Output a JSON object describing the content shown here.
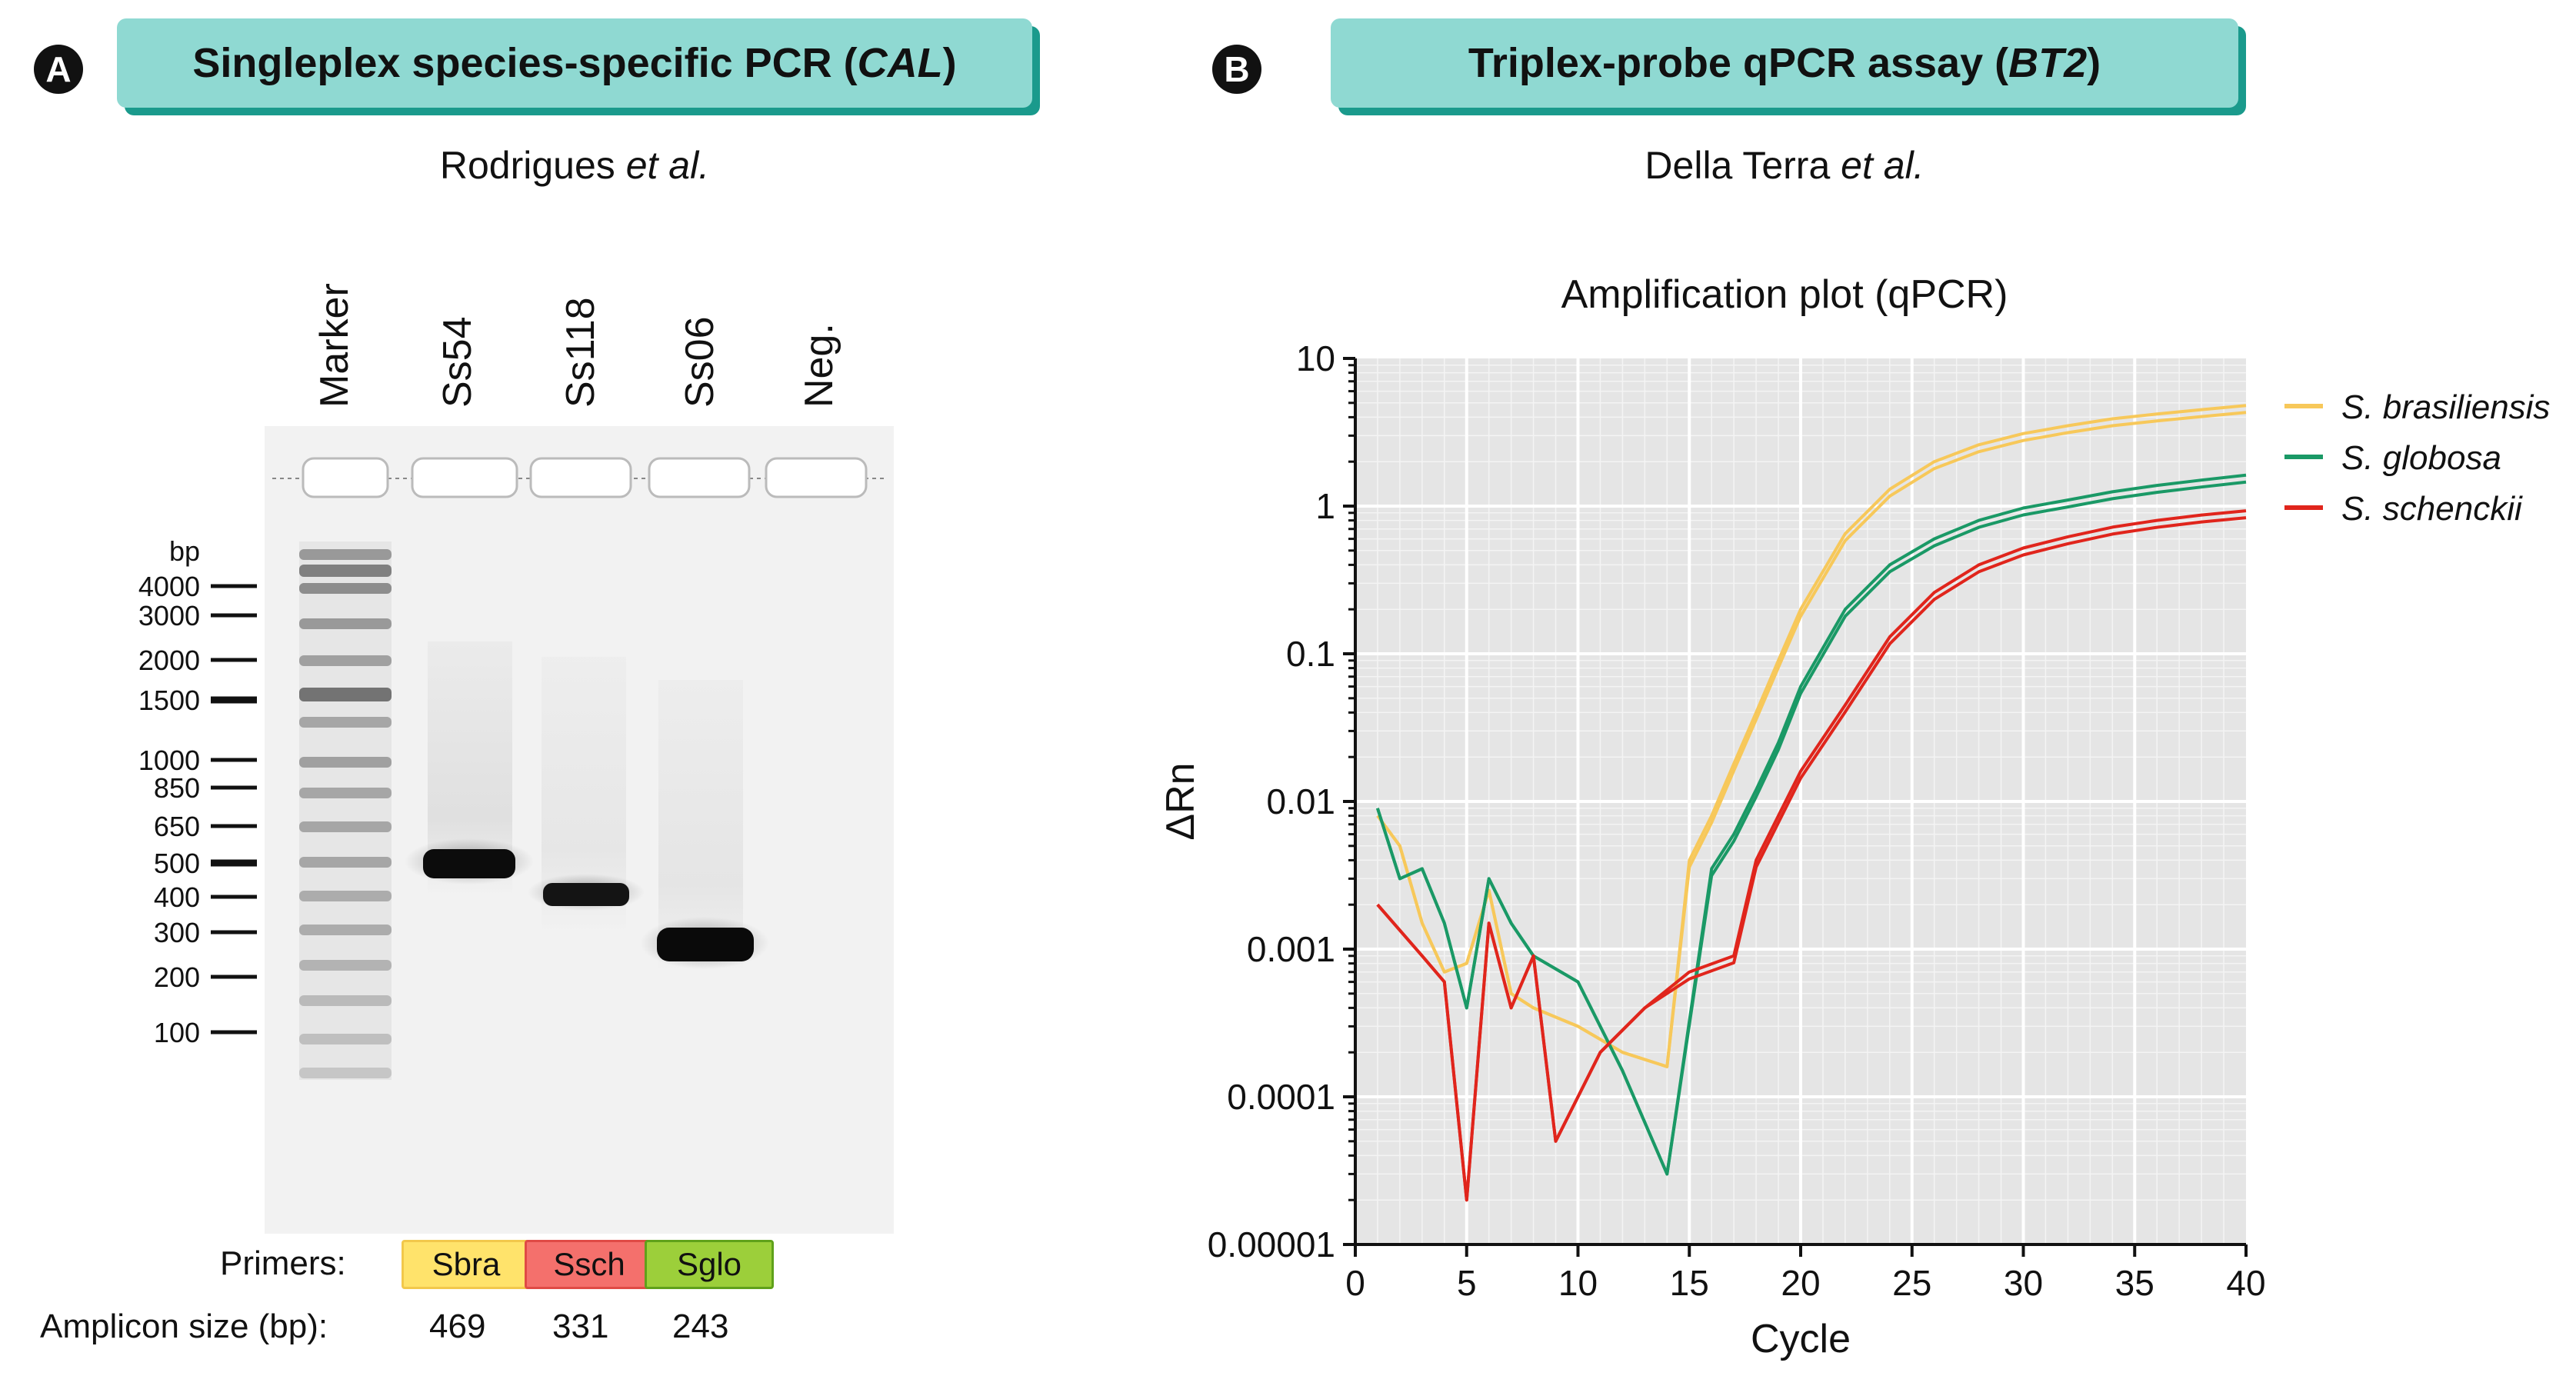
{
  "panel_a": {
    "badge": "A",
    "title_main": "Singleplex species-specific PCR (",
    "title_gene": "CAL",
    "title_end": ")",
    "author_name": "Rodrigues ",
    "author_etal": "et al.",
    "lanes": [
      "Marker",
      "Ss54",
      "Ss118",
      "Ss06",
      "Neg."
    ],
    "bp_unit": "bp",
    "ladder": [
      "4000",
      "3000",
      "2000",
      "1500",
      "1000",
      "850",
      "650",
      "500",
      "400",
      "300",
      "200",
      "100"
    ],
    "primers_label": "Primers:",
    "primers": [
      {
        "name": "Sbra",
        "color": "#ffe36b",
        "border": "#f2c84b"
      },
      {
        "name": "Ssch",
        "color": "#f4706c",
        "border": "#e04a45"
      },
      {
        "name": "Sglo",
        "color": "#9ccf3a",
        "border": "#5fa11a"
      }
    ],
    "amplicon_label": "Amplicon size (bp):",
    "amplicons": [
      "469",
      "331",
      "243"
    ]
  },
  "panel_b": {
    "badge": "B",
    "title_main": "Triplex-probe qPCR assay (",
    "title_gene": "BT2",
    "title_end": ")",
    "author_name": "Della Terra ",
    "author_etal": "et al."
  },
  "chart_data": {
    "type": "line",
    "title": "Amplification plot (qPCR)",
    "xlabel": "Cycle",
    "ylabel": "ΔRn",
    "x_ticks": [
      "0",
      "5",
      "10",
      "15",
      "20",
      "25",
      "30",
      "35",
      "40"
    ],
    "y_ticks": [
      "10",
      "1",
      "0.1",
      "0.01",
      "0.001",
      "0.0001",
      "0.00001"
    ],
    "xlim": [
      0,
      40
    ],
    "ylim": [
      1e-05,
      10
    ],
    "yscale": "log",
    "legend_position": "right",
    "series": [
      {
        "name": "S. brasiliensis",
        "color": "#f7c85a",
        "x": [
          1,
          2,
          3,
          4,
          5,
          6,
          7,
          8,
          10,
          12,
          14,
          15,
          16,
          17,
          18,
          19,
          20,
          22,
          24,
          26,
          28,
          30,
          32,
          34,
          36,
          38,
          40
        ],
        "y": [
          0.008,
          0.005,
          0.0015,
          0.0007,
          0.0008,
          0.0025,
          0.0005,
          0.0004,
          0.0003,
          0.0002,
          0.00016,
          0.004,
          0.008,
          0.018,
          0.04,
          0.09,
          0.2,
          0.65,
          1.3,
          2.0,
          2.6,
          3.1,
          3.5,
          3.9,
          4.2,
          4.5,
          4.8
        ]
      },
      {
        "name": "S. globosa",
        "color": "#1a9966",
        "x": [
          1,
          2,
          3,
          4,
          5,
          6,
          7,
          8,
          10,
          12,
          14,
          16,
          17,
          18,
          19,
          20,
          22,
          24,
          26,
          28,
          30,
          32,
          34,
          36,
          38,
          40
        ],
        "y": [
          0.009,
          0.003,
          0.0035,
          0.0015,
          0.0004,
          0.003,
          0.0015,
          0.0009,
          0.0006,
          0.00015,
          3e-05,
          0.0035,
          0.006,
          0.012,
          0.025,
          0.06,
          0.2,
          0.4,
          0.6,
          0.8,
          0.97,
          1.1,
          1.25,
          1.38,
          1.5,
          1.62
        ]
      },
      {
        "name": "S. schenckii",
        "color": "#e0251c",
        "x": [
          1,
          3,
          4,
          5,
          6,
          7,
          8,
          9,
          11,
          13,
          15,
          17,
          18,
          19,
          20,
          22,
          24,
          26,
          28,
          30,
          32,
          34,
          36,
          38,
          40
        ],
        "y": [
          0.002,
          0.0009,
          0.0006,
          2e-05,
          0.0015,
          0.0004,
          0.0009,
          5e-05,
          0.0002,
          0.0004,
          0.0007,
          0.0009,
          0.004,
          0.008,
          0.016,
          0.045,
          0.13,
          0.26,
          0.4,
          0.52,
          0.62,
          0.72,
          0.8,
          0.87,
          0.93
        ]
      }
    ]
  }
}
